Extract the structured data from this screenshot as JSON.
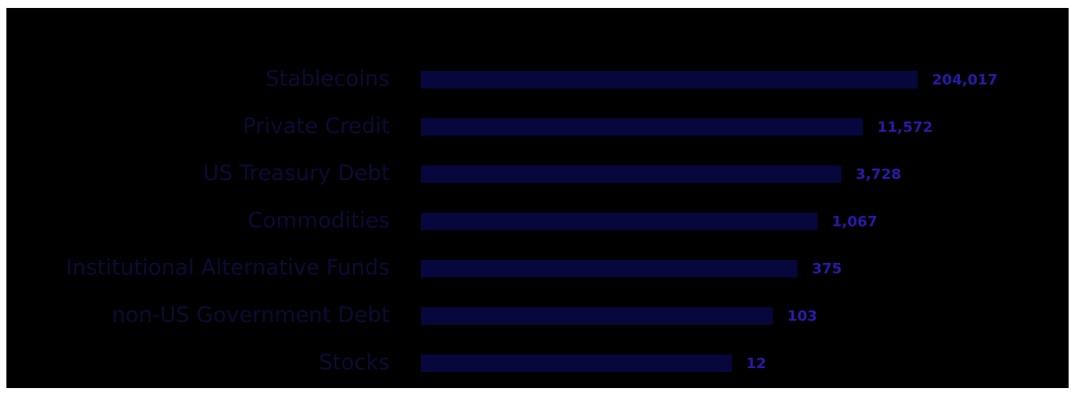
{
  "chart_data": {
    "type": "bar",
    "orientation": "horizontal",
    "categories": [
      "Stablecoins",
      "Private Credit",
      "US Treasury Debt",
      "Commodities",
      "Institutional Alternative Funds",
      "non-US Government Debt",
      "Stocks"
    ],
    "values": [
      204017,
      11572,
      3728,
      1067,
      375,
      103,
      12
    ],
    "value_labels": [
      "204,017",
      "11,572",
      "3,728",
      "1,067",
      "375",
      "103",
      "12"
    ],
    "color": "#07073d",
    "label_color": "#2a1aa8",
    "category_color": "#0b0b35",
    "xscale": "log",
    "xlim": [
      1e-06,
      1000000
    ]
  }
}
